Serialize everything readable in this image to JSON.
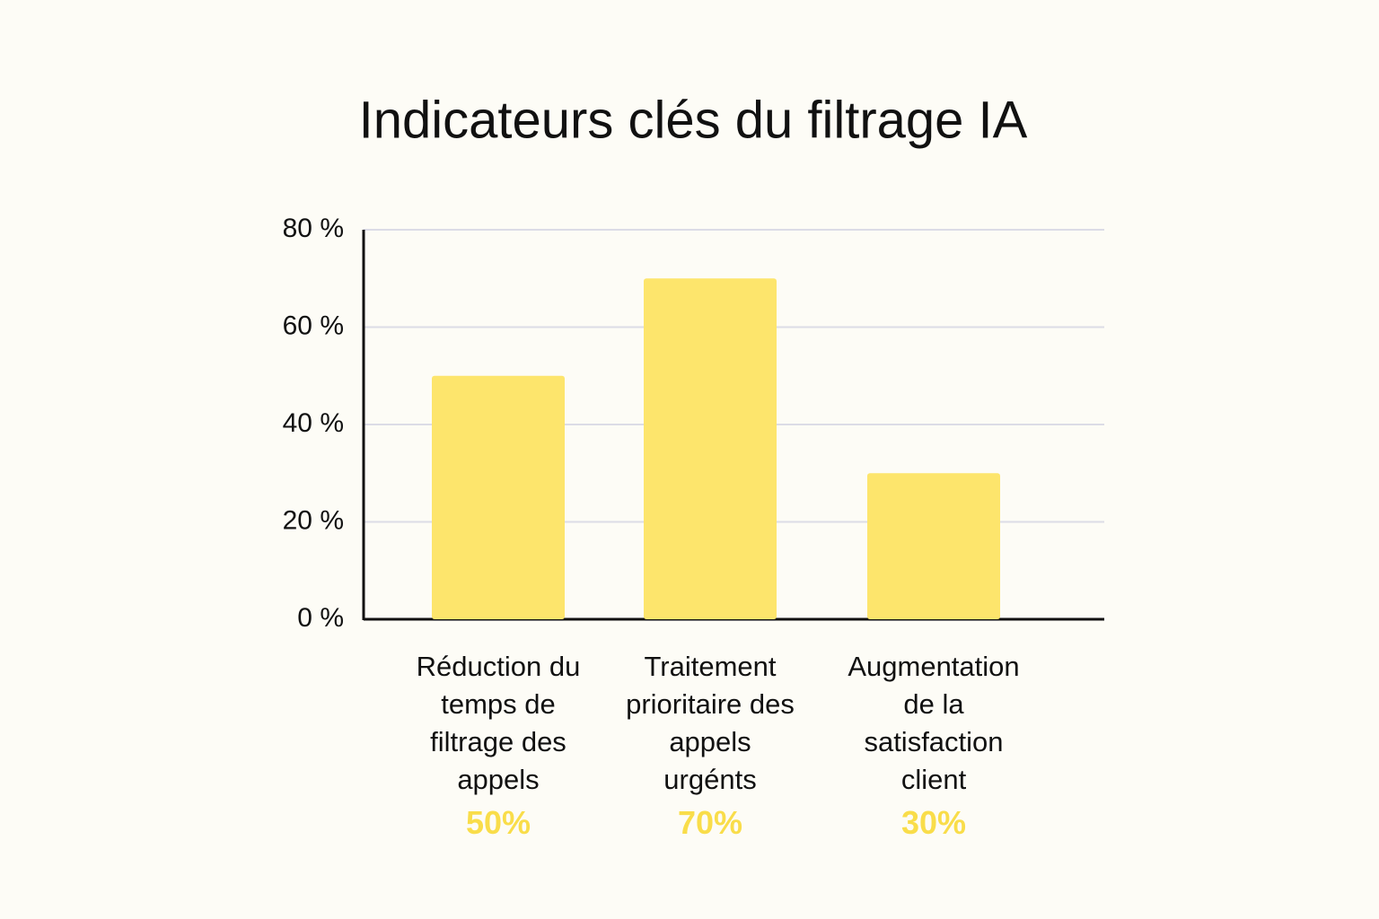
{
  "chart_data": {
    "type": "bar",
    "title": "Indicateurs clés du filtrage IA",
    "categories": [
      "Réduction du temps de filtrage des appels",
      "Traitement prioritaire des appels urgénts",
      "Augmentation de la satisfaction client"
    ],
    "values": [
      50,
      70,
      30
    ],
    "value_labels": [
      "50%",
      "70%",
      "30%"
    ],
    "color": "#fde56c",
    "label_color": "#f9dd4a",
    "ylim": [
      0,
      80
    ],
    "yticks": [
      {
        "value": 0,
        "label": "0 %"
      },
      {
        "value": 20,
        "label": "20 %"
      },
      {
        "value": 40,
        "label": "40 %"
      },
      {
        "value": 60,
        "label": "60 %"
      },
      {
        "value": 80,
        "label": "80 %"
      }
    ],
    "grid": true
  }
}
